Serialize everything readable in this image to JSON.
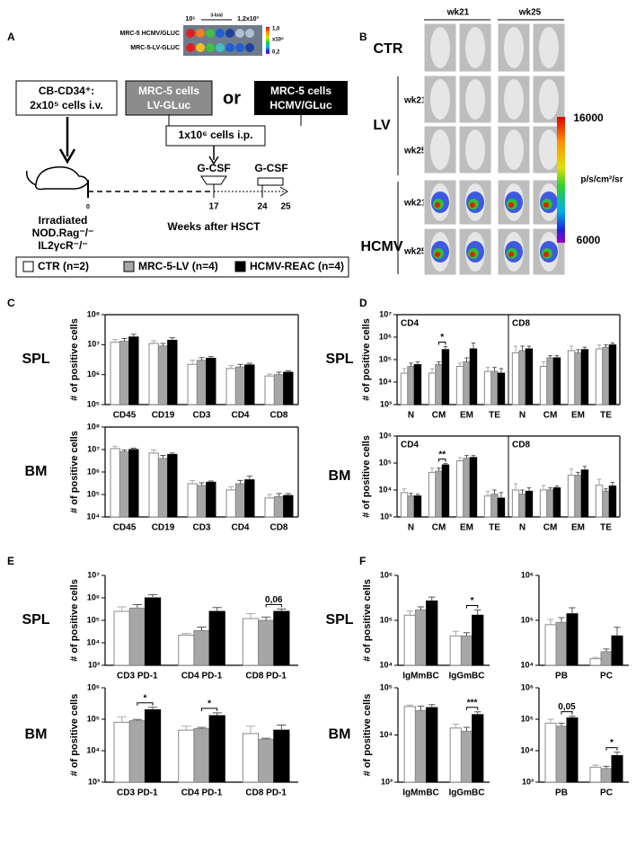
{
  "panel_a": {
    "letter": "A",
    "plate": {
      "row1": "MRC-5 HCMV/GLUC",
      "row2": "MRC-5-LV-GLUC",
      "left": "10⁵",
      "fold": "3-fold",
      "right": "1,2x10³",
      "scale_top": "1,0",
      "scale_unit": "x10⁸",
      "scale_bottom": "0,2"
    },
    "cb_box": [
      "CB-CD34⁺:",
      "2x10⁵ cells i.v."
    ],
    "lv_box": [
      "MRC-5 cells",
      "LV-GLuc"
    ],
    "or": "or",
    "hcmv_box": [
      "MRC-5 cells",
      "HCMV/GLuc"
    ],
    "ip_box": "1x10⁶ cells i.p.",
    "gcsf": [
      "G-CSF",
      "G-CSF"
    ],
    "timeline": [
      "0",
      "17",
      "24",
      "25"
    ],
    "mouse_label": [
      "Irradiated",
      "NOD.Rag⁻/⁻",
      "IL2γcR⁻/⁻"
    ],
    "axis_label": "Weeks after HSCT"
  },
  "panel_b": {
    "letter": "B",
    "columns": [
      "wk21",
      "wk25"
    ],
    "groups": [
      "CTR",
      "LV",
      "HCMV"
    ],
    "rows": [
      "wk21",
      "wk25",
      "wk21",
      "wk25"
    ],
    "colorbar": {
      "max": "16000",
      "min": "6000",
      "unit": "p/s/cm²/sr"
    }
  },
  "legend": [
    {
      "name": "CTR (n=2)",
      "color": "#ffffff"
    },
    {
      "name": "MRC-5-LV (n=4)",
      "color": "#a6a6a6"
    },
    {
      "name": "HCMV-REAC (n=4)",
      "color": "#000000"
    }
  ],
  "chart_data": [
    {
      "type": "bar",
      "panel": "C",
      "row_label": "SPL",
      "ylabel": "# of positive cells",
      "log_scale": true,
      "frame": true,
      "categories": [
        "CD45",
        "CD19",
        "CD3",
        "CD4",
        "CD8"
      ],
      "series": [
        {
          "color": "#ffffff",
          "values": [
            12000000,
            11000000,
            2200000,
            1600000,
            900000
          ],
          "errors": [
            3000000,
            2500000,
            800000,
            400000,
            150000
          ]
        },
        {
          "color": "#a6a6a6",
          "values": [
            13000000,
            9000000,
            3000000,
            1800000,
            1000000
          ],
          "errors": [
            3000000,
            2000000,
            700000,
            400000,
            200000
          ]
        },
        {
          "color": "#000000",
          "values": [
            18000000,
            14000000,
            3500000,
            2100000,
            1200000
          ],
          "errors": [
            4000000,
            3000000,
            500000,
            300000,
            150000
          ]
        }
      ],
      "ylim": [
        100000,
        100000000
      ],
      "yticks": [
        {
          "value": 100000,
          "label": "10⁵"
        },
        {
          "value": 1000000,
          "label": "10⁶"
        },
        {
          "value": 10000000,
          "label": "10⁷"
        },
        {
          "value": 100000000,
          "label": "10⁸"
        }
      ]
    },
    {
      "type": "bar",
      "row_label": "BM",
      "ylabel": "# of positive cells",
      "log_scale": true,
      "frame": true,
      "categories": [
        "CD45",
        "CD19",
        "CD3",
        "CD4",
        "CD8"
      ],
      "series": [
        {
          "color": "#ffffff",
          "values": [
            11000000,
            7000000,
            300000,
            160000,
            70000
          ],
          "errors": [
            3000000,
            2500000,
            120000,
            60000,
            30000
          ]
        },
        {
          "color": "#a6a6a6",
          "values": [
            8000000,
            4000000,
            250000,
            300000,
            80000
          ],
          "errors": [
            1500000,
            1500000,
            80000,
            120000,
            30000
          ]
        },
        {
          "color": "#000000",
          "values": [
            10000000,
            6000000,
            350000,
            450000,
            90000
          ],
          "errors": [
            1500000,
            1000000,
            50000,
            200000,
            20000
          ]
        }
      ],
      "ylim": [
        10000,
        100000000
      ],
      "yticks": [
        {
          "value": 10000,
          "label": "10⁴"
        },
        {
          "value": 100000,
          "label": "10⁵"
        },
        {
          "value": 1000000,
          "label": "10⁶"
        },
        {
          "value": 10000000,
          "label": "10⁷"
        },
        {
          "value": 100000000,
          "label": "10⁸"
        }
      ]
    },
    {
      "type": "bar",
      "panel": "D",
      "row_label": "SPL",
      "ylabel": "# of positive cells",
      "log_scale": true,
      "frame": true,
      "groups": [
        "CD4",
        "CD8"
      ],
      "categories": [
        "N",
        "CM",
        "EM",
        "TE",
        "N",
        "CM",
        "EM",
        "TE"
      ],
      "series": [
        {
          "color": "#ffffff",
          "values": [
            25000,
            25000,
            50000,
            30000,
            200000,
            50000,
            250000,
            300000
          ],
          "errors": [
            15000,
            15000,
            20000,
            15000,
            200000,
            30000,
            150000,
            150000
          ]
        },
        {
          "color": "#a6a6a6",
          "values": [
            50000,
            60000,
            80000,
            30000,
            250000,
            120000,
            200000,
            350000
          ],
          "errors": [
            20000,
            20000,
            40000,
            15000,
            150000,
            30000,
            80000,
            100000
          ]
        },
        {
          "color": "#000000",
          "values": [
            60000,
            280000,
            300000,
            25000,
            300000,
            120000,
            280000,
            450000
          ],
          "errors": [
            20000,
            100000,
            250000,
            15000,
            100000,
            30000,
            80000,
            100000
          ]
        }
      ],
      "ylim": [
        1000,
        10000000
      ],
      "yticks": [
        {
          "value": 1000,
          "label": "10³"
        },
        {
          "value": 10000,
          "label": "10⁴"
        },
        {
          "value": 100000,
          "label": "10⁵"
        },
        {
          "value": 1000000,
          "label": "10⁶"
        },
        {
          "value": 10000000,
          "label": "10⁷"
        }
      ],
      "annotations": [
        {
          "text": "*",
          "group": "CD4",
          "category": "CM"
        }
      ]
    },
    {
      "type": "bar",
      "row_label": "BM",
      "ylabel": "# of positive cells",
      "log_scale": true,
      "frame": true,
      "groups": [
        "CD4",
        "CD8"
      ],
      "categories": [
        "N",
        "CM",
        "EM",
        "TE",
        "N",
        "CM",
        "EM",
        "TE"
      ],
      "series": [
        {
          "color": "#ffffff",
          "values": [
            8000,
            45000,
            120000,
            6000,
            10000,
            10000,
            35000,
            15000
          ],
          "errors": [
            3000,
            20000,
            40000,
            3000,
            7000,
            5000,
            25000,
            10000
          ]
        },
        {
          "color": "#a6a6a6",
          "values": [
            6000,
            50000,
            150000,
            7000,
            7000,
            10000,
            35000,
            9000
          ],
          "errors": [
            1500,
            15000,
            40000,
            3000,
            3000,
            2000,
            10000,
            2000
          ]
        },
        {
          "color": "#000000",
          "values": [
            6000,
            85000,
            160000,
            5000,
            9000,
            12000,
            55000,
            14000
          ],
          "errors": [
            1000,
            10000,
            30000,
            3000,
            3000,
            2000,
            20000,
            5000
          ]
        }
      ],
      "ylim": [
        1000,
        1000000
      ],
      "yticks": [
        {
          "value": 1000,
          "label": "10³"
        },
        {
          "value": 10000,
          "label": "10⁴"
        },
        {
          "value": 100000,
          "label": "10⁵"
        },
        {
          "value": 1000000,
          "label": "10⁶"
        }
      ],
      "annotations": [
        {
          "text": "**",
          "group": "CD4",
          "category": "CM"
        }
      ]
    },
    {
      "type": "bar",
      "panel": "E",
      "row_label": "SPL",
      "ylabel": "# of positive cells",
      "log_scale": true,
      "frame": false,
      "categories": [
        "CD3 PD-1",
        "CD4 PD-1",
        "CD8 PD-1"
      ],
      "series": [
        {
          "color": "#ffffff",
          "values": [
            250000,
            22000,
            120000
          ],
          "errors": [
            150000,
            4000,
            80000
          ]
        },
        {
          "color": "#a6a6a6",
          "values": [
            350000,
            35000,
            100000
          ],
          "errors": [
            150000,
            15000,
            40000
          ]
        },
        {
          "color": "#000000",
          "values": [
            1000000,
            250000,
            250000
          ],
          "errors": [
            400000,
            120000,
            70000
          ]
        }
      ],
      "ylim": [
        1000,
        10000000
      ],
      "yticks": [
        {
          "value": 1000,
          "label": "10³"
        },
        {
          "value": 10000,
          "label": "10⁴"
        },
        {
          "value": 100000,
          "label": "10⁵"
        },
        {
          "value": 1000000,
          "label": "10⁶"
        },
        {
          "value": 10000000,
          "label": "10⁷"
        }
      ],
      "annotations": [
        {
          "text": "0,06",
          "category": "CD8 PD-1"
        }
      ]
    },
    {
      "type": "bar",
      "row_label": "BM",
      "ylabel": "# of positive cells",
      "log_scale": true,
      "frame": false,
      "categories": [
        "CD3 PD-1",
        "CD4 PD-1",
        "CD8 PD-1"
      ],
      "series": [
        {
          "color": "#ffffff",
          "values": [
            80000,
            45000,
            35000
          ],
          "errors": [
            40000,
            15000,
            25000
          ]
        },
        {
          "color": "#a6a6a6",
          "values": [
            90000,
            50000,
            23000
          ],
          "errors": [
            8000,
            5000,
            2000
          ]
        },
        {
          "color": "#000000",
          "values": [
            200000,
            130000,
            45000
          ],
          "errors": [
            40000,
            30000,
            20000
          ]
        }
      ],
      "ylim": [
        1000,
        1000000
      ],
      "yticks": [
        {
          "value": 1000,
          "label": "10³"
        },
        {
          "value": 10000,
          "label": "10⁴"
        },
        {
          "value": 100000,
          "label": "10⁵"
        },
        {
          "value": 1000000,
          "label": "10⁶"
        }
      ],
      "annotations": [
        {
          "text": "*",
          "category": "CD3 PD-1"
        },
        {
          "text": "*",
          "category": "CD4 PD-1"
        }
      ]
    },
    {
      "type": "bar",
      "panel": "F",
      "row_label": "SPL",
      "ylabel": "# of positive cells",
      "log_scale": true,
      "frame": false,
      "categories": [
        "IgMmBC",
        "IgGmBC"
      ],
      "series": [
        {
          "color": "#ffffff",
          "values": [
            130000,
            45000
          ],
          "errors": [
            30000,
            12000
          ]
        },
        {
          "color": "#a6a6a6",
          "values": [
            170000,
            45000
          ],
          "errors": [
            30000,
            8000
          ]
        },
        {
          "color": "#000000",
          "values": [
            270000,
            130000
          ],
          "errors": [
            60000,
            40000
          ]
        }
      ],
      "ylim": [
        10000,
        1000000
      ],
      "yticks": [
        {
          "value": 10000,
          "label": "10⁴"
        },
        {
          "value": 100000,
          "label": "10⁵"
        },
        {
          "value": 1000000,
          "label": "10⁶"
        }
      ],
      "annotations": [
        {
          "text": "*",
          "category": "IgGmBC"
        }
      ]
    },
    {
      "type": "bar",
      "log_scale": true,
      "frame": false,
      "categories": [
        "PB",
        "PC"
      ],
      "series": [
        {
          "color": "#ffffff",
          "values": [
            80000,
            14000
          ],
          "errors": [
            25000,
            1000
          ]
        },
        {
          "color": "#a6a6a6",
          "values": [
            90000,
            20000
          ],
          "errors": [
            25000,
            3000
          ]
        },
        {
          "color": "#000000",
          "values": [
            140000,
            45000
          ],
          "errors": [
            50000,
            25000
          ]
        }
      ],
      "ylim": [
        10000,
        1000000
      ],
      "yticks": [
        {
          "value": 10000,
          "label": "10⁴"
        },
        {
          "value": 100000,
          "label": "10⁵"
        },
        {
          "value": 1000000,
          "label": "10⁶"
        }
      ]
    },
    {
      "type": "bar",
      "row_label": "BM",
      "ylabel": "# of positive cells",
      "log_scale": true,
      "frame": false,
      "categories": [
        "IgMmBC",
        "IgGmBC"
      ],
      "series": [
        {
          "color": "#ffffff",
          "values": [
            40000,
            14000
          ],
          "errors": [
            3000,
            3000
          ]
        },
        {
          "color": "#a6a6a6",
          "values": [
            33000,
            12000
          ],
          "errors": [
            8000,
            2500
          ]
        },
        {
          "color": "#000000",
          "values": [
            38000,
            27000
          ],
          "errors": [
            6000,
            4000
          ]
        }
      ],
      "ylim": [
        1000,
        100000
      ],
      "yticks": [
        {
          "value": 1000,
          "label": "10³"
        },
        {
          "value": 10000,
          "label": "10⁴"
        },
        {
          "value": 100000,
          "label": "10⁵"
        }
      ],
      "annotations": [
        {
          "text": "***",
          "category": "IgGmBC"
        }
      ]
    },
    {
      "type": "bar",
      "log_scale": true,
      "frame": false,
      "categories": [
        "PB",
        "PC"
      ],
      "series": [
        {
          "color": "#ffffff",
          "values": [
            75000,
            3000
          ],
          "errors": [
            25000,
            500
          ]
        },
        {
          "color": "#a6a6a6",
          "values": [
            60000,
            2700
          ],
          "errors": [
            15000,
            500
          ]
        },
        {
          "color": "#000000",
          "values": [
            110000,
            7000
          ],
          "errors": [
            15000,
            2000
          ]
        }
      ],
      "ylim": [
        1000,
        1000000
      ],
      "yticks": [
        {
          "value": 1000,
          "label": "10³"
        },
        {
          "value": 10000,
          "label": "10⁴"
        },
        {
          "value": 100000,
          "label": "10⁵"
        },
        {
          "value": 1000000,
          "label": "10⁶"
        }
      ],
      "annotations": [
        {
          "text": "0,05",
          "category": "PB"
        },
        {
          "text": "*",
          "category": "PC"
        }
      ]
    }
  ]
}
